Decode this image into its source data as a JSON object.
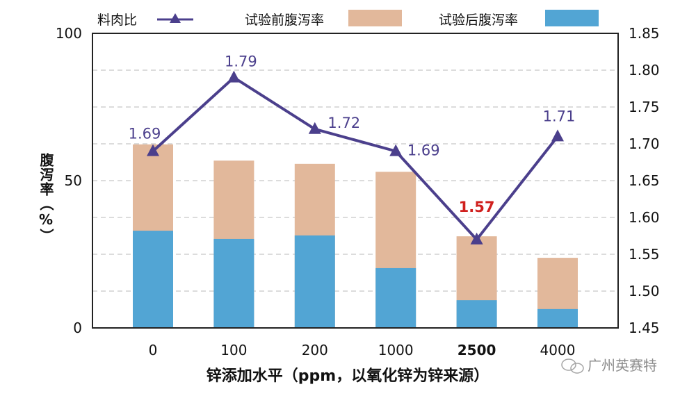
{
  "chart_data": {
    "type": "bar+line",
    "categories": [
      "0",
      "100",
      "200",
      "1000",
      "2500",
      "4000"
    ],
    "highlight_category_index": 4,
    "xlabel": "锌添加水平（ppm，以氧化锌为锌来源）",
    "ylabel": "腹泻率（%）",
    "ylim": [
      0,
      100
    ],
    "yticks": [
      "0",
      "50",
      "100"
    ],
    "y2lim": [
      1.45,
      1.85
    ],
    "y2ticks": [
      "1.45",
      "1.50",
      "1.55",
      "1.60",
      "1.65",
      "1.70",
      "1.75",
      "1.80",
      "1.85"
    ],
    "legend_position": "top",
    "series": [
      {
        "name": "料肉比",
        "type": "line",
        "axis": "right",
        "color": "#4b3f8c",
        "values": [
          1.69,
          1.79,
          1.72,
          1.69,
          1.57,
          1.71
        ],
        "labels": [
          "1.69",
          "1.79",
          "1.72",
          "1.69",
          "1.57",
          "1.71"
        ]
      },
      {
        "name": "试验前腹泻率",
        "type": "bar",
        "axis": "left",
        "color": "#e2b89b",
        "values": [
          62.3,
          56.8,
          55.7,
          53,
          31.1,
          23.8
        ]
      },
      {
        "name": "试验后腹泻率",
        "type": "bar",
        "axis": "left",
        "color": "#52a5d4",
        "values": [
          33,
          30.2,
          31.4,
          20.3,
          9.4,
          6.4
        ]
      }
    ],
    "highlight_color": "#d0201e"
  },
  "watermark": "广州英赛特"
}
